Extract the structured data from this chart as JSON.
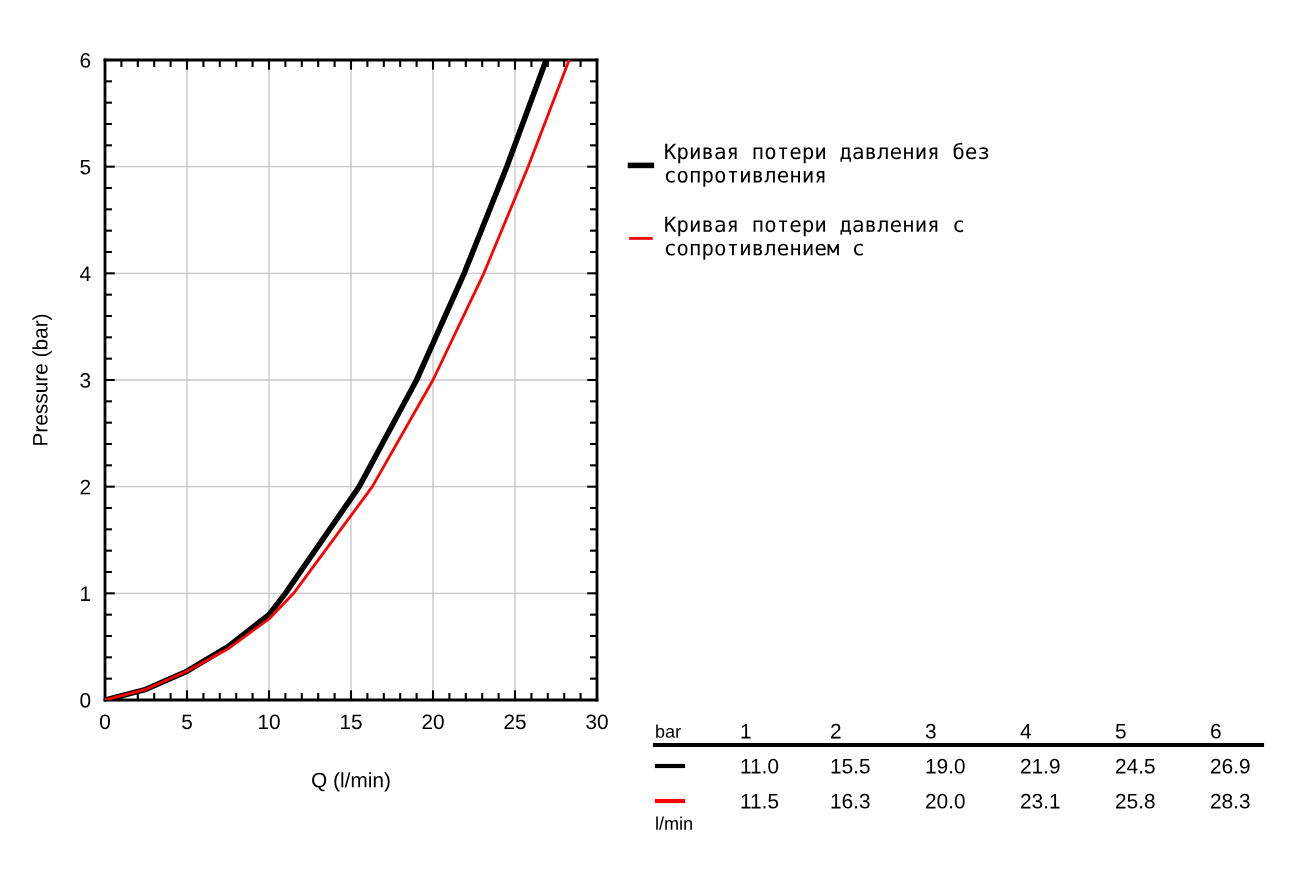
{
  "chart_data": {
    "type": "line",
    "xlabel": "Q (l/min)",
    "ylabel": "Pressure (bar)",
    "xlim": [
      0,
      30
    ],
    "ylim": [
      0,
      6
    ],
    "xticks": [
      0,
      5,
      10,
      15,
      20,
      25,
      30
    ],
    "yticks": [
      0,
      1,
      2,
      3,
      4,
      5,
      6
    ],
    "grid": true,
    "legend": "right",
    "marker": "none",
    "line_style": "solid",
    "series": [
      {
        "name": "Кривая потери давления без сопротивления",
        "color": "#000000",
        "x": [
          0,
          2.5,
          5,
          7.5,
          10,
          11.0,
          15.5,
          19.0,
          21.9,
          24.5,
          26.9
        ],
        "values": [
          0,
          0.1,
          0.27,
          0.5,
          0.8,
          1,
          2,
          3,
          4,
          5,
          6
        ]
      },
      {
        "name": "Кривая потери давления с сопротивлением с",
        "color": "#ff0000",
        "x": [
          0,
          2.5,
          5,
          7.5,
          10,
          11.5,
          16.3,
          20.0,
          23.1,
          25.8,
          28.3
        ],
        "values": [
          0,
          0.1,
          0.27,
          0.48,
          0.76,
          1,
          2,
          3,
          4,
          5,
          6
        ]
      }
    ],
    "annotations": [
      "bar",
      "1",
      "2",
      "3",
      "4",
      "5",
      "6",
      "11.0",
      "15.5",
      "19.0",
      "21.9",
      "24.5",
      "26.9",
      "11.5",
      "16.3",
      "20.0",
      "23.1",
      "25.8",
      "28.3",
      "l/min"
    ]
  }
}
